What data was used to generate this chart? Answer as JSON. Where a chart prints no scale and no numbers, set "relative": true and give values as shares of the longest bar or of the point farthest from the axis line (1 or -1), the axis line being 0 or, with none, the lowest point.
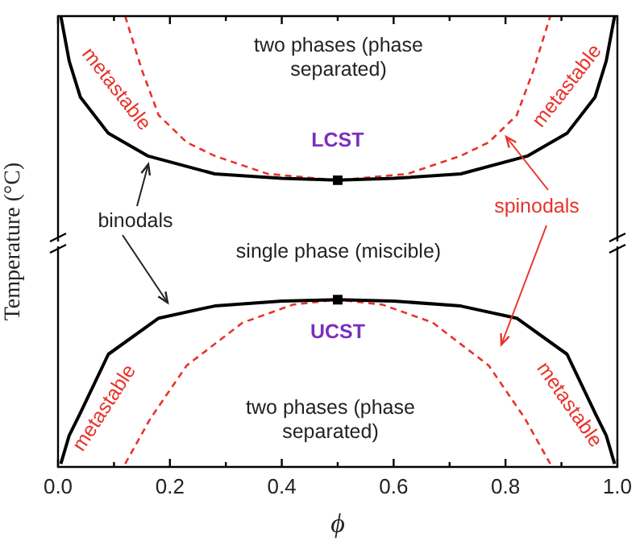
{
  "chart_data": {
    "type": "line",
    "relative": true,
    "xlabel": "ϕ",
    "ylabel": "Temperature (°C)",
    "xlim": [
      0,
      1
    ],
    "xticks": [
      {
        "value": 0,
        "label": "0.0"
      },
      {
        "value": 0.1,
        "label": null
      },
      {
        "value": 0.2,
        "label": "0.2"
      },
      {
        "value": 0.3,
        "label": null
      },
      {
        "value": 0.4,
        "label": "0.4"
      },
      {
        "value": 0.5,
        "label": null
      },
      {
        "value": 0.6,
        "label": "0.6"
      },
      {
        "value": 0.7,
        "label": null
      },
      {
        "value": 0.8,
        "label": "0.8"
      },
      {
        "value": 0.9,
        "label": null
      },
      {
        "value": 1,
        "label": "1.0"
      }
    ],
    "series": [
      {
        "color": "#000000",
        "line_style": "solid",
        "x": [
          0.005,
          0.02,
          0.04,
          0.09,
          0.16,
          0.28,
          0.4,
          0.5,
          0.6,
          0.72,
          0.84,
          0.91,
          0.96,
          0.98,
          0.995
        ],
        "values": [
          1,
          0.9,
          0.82,
          0.74,
          0.69,
          0.65,
          0.64,
          0.636,
          0.64,
          0.65,
          0.69,
          0.74,
          0.82,
          0.9,
          1
        ]
      },
      {
        "color": "#e8332a",
        "line_style": "dashed",
        "x": [
          0.12,
          0.15,
          0.18,
          0.23,
          0.28,
          0.375,
          0.5,
          0.625,
          0.72,
          0.77,
          0.82,
          0.85,
          0.88
        ],
        "values": [
          1,
          0.88,
          0.78,
          0.72,
          0.69,
          0.65,
          0.636,
          0.65,
          0.69,
          0.72,
          0.78,
          0.88,
          1
        ]
      },
      {
        "color": "#000000",
        "line_style": "solid",
        "x": [
          0.005,
          0.02,
          0.04,
          0.09,
          0.18,
          0.28,
          0.4,
          0.5,
          0.6,
          0.72,
          0.82,
          0.91,
          0.96,
          0.98,
          0.995
        ],
        "values": [
          0.007,
          0.07,
          0.12,
          0.25,
          0.33,
          0.357,
          0.368,
          0.371,
          0.368,
          0.357,
          0.33,
          0.25,
          0.12,
          0.07,
          0.007
        ]
      },
      {
        "color": "#e8332a",
        "line_style": "dashed",
        "x": [
          0.12,
          0.165,
          0.23,
          0.33,
          0.42,
          0.5,
          0.58,
          0.67,
          0.77,
          0.835,
          0.88
        ],
        "values": [
          0.007,
          0.107,
          0.225,
          0.32,
          0.36,
          0.371,
          0.36,
          0.32,
          0.225,
          0.107,
          0.007
        ]
      },
      {
        "type": "scatter",
        "marker": "square",
        "color": "#000000",
        "x": [
          0.5,
          0.5
        ],
        "values": [
          0.636,
          0.371
        ]
      }
    ],
    "annotations": [
      "two phases (phase separated)",
      "metastable",
      "metastable",
      {
        "text": "LCST",
        "x": 0.5,
        "y": 0.636
      },
      "binodals",
      "single phase (miscible)",
      "spinodals",
      {
        "text": "UCST",
        "x": 0.5,
        "y": 0.371
      },
      "metastable",
      "metastable",
      "two phases (phase separated)"
    ]
  }
}
